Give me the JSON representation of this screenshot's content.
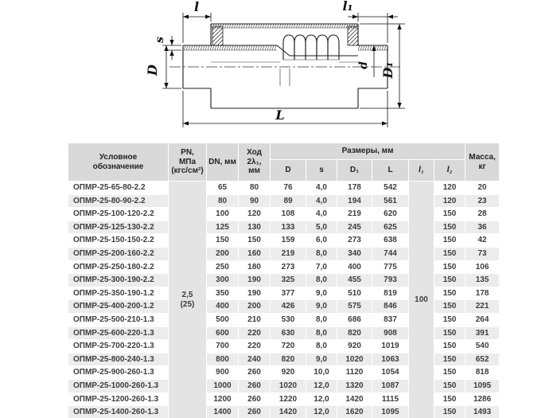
{
  "drawing": {
    "labels": {
      "l": "l",
      "l1": "l₁",
      "s": "s",
      "D": "D",
      "d": "d",
      "D1": "D₁",
      "L": "L"
    }
  },
  "table": {
    "headers": {
      "designation": "Условное\nобозначение",
      "pn": "PN,\nМПа\n(кгс/см²)",
      "dn": "DN, мм",
      "stroke": "Ход 2λ₁,\nмм",
      "dimensions_group": "Размеры, мм",
      "dim_cols": [
        "D",
        "s",
        "D₁",
        "L",
        "l₁",
        "l₂"
      ],
      "mass": "Масса,\nкг"
    },
    "pn_value": "2,5\n(25)",
    "l1_value": "100",
    "rows": [
      [
        "ОПМР-25-65-80-2.2",
        "65",
        "80",
        "76",
        "4,0",
        "178",
        "542",
        "120",
        "20"
      ],
      [
        "ОПМР-25-80-90-2.2",
        "80",
        "90",
        "89",
        "4,0",
        "194",
        "561",
        "120",
        "23"
      ],
      [
        "ОПМР-25-100-120-2.2",
        "100",
        "120",
        "108",
        "4,0",
        "219",
        "620",
        "150",
        "28"
      ],
      [
        "ОПМР-25-125-130-2.2",
        "125",
        "130",
        "133",
        "5,0",
        "245",
        "625",
        "150",
        "36"
      ],
      [
        "ОПМР-25-150-150-2.2",
        "150",
        "150",
        "159",
        "6,0",
        "273",
        "638",
        "150",
        "42"
      ],
      [
        "ОПМР-25-200-160-2.2",
        "200",
        "160",
        "219",
        "8,0",
        "340",
        "744",
        "150",
        "73"
      ],
      [
        "ОПМР-25-250-180-2.2",
        "250",
        "180",
        "273",
        "7,0",
        "400",
        "775",
        "150",
        "106"
      ],
      [
        "ОПМР-25-300-190-2.2",
        "300",
        "190",
        "325",
        "8,0",
        "455",
        "793",
        "150",
        "135"
      ],
      [
        "ОПМР-25-350-190-1.2",
        "350",
        "190",
        "377",
        "9,0",
        "510",
        "819",
        "150",
        "178"
      ],
      [
        "ОПМР-25-400-200-1.2",
        "400",
        "200",
        "426",
        "9,0",
        "575",
        "846",
        "150",
        "221"
      ],
      [
        "ОПМР-25-500-210-1.3",
        "500",
        "210",
        "530",
        "8,0",
        "686",
        "837",
        "150",
        "264"
      ],
      [
        "ОПМР-25-600-220-1.3",
        "600",
        "220",
        "630",
        "8,0",
        "820",
        "908",
        "150",
        "391"
      ],
      [
        "ОПМР-25-700-220-1.3",
        "700",
        "220",
        "720",
        "8,0",
        "920",
        "1019",
        "150",
        "540"
      ],
      [
        "ОПМР-25-800-240-1.3",
        "800",
        "240",
        "820",
        "9,0",
        "1020",
        "1063",
        "150",
        "652"
      ],
      [
        "ОПМР-25-900-260-1.3",
        "900",
        "260",
        "920",
        "10,0",
        "1120",
        "1054",
        "150",
        "818"
      ],
      [
        "ОПМР-25-1000-260-1.3",
        "1000",
        "260",
        "1020",
        "12,0",
        "1320",
        "1087",
        "150",
        "1095"
      ],
      [
        "ОПМР-25-1200-260-1.3",
        "1200",
        "260",
        "1220",
        "12,0",
        "1420",
        "1115",
        "150",
        "1286"
      ],
      [
        "ОПМР-25-1400-260-1.3",
        "1400",
        "260",
        "1420",
        "12,0",
        "1620",
        "1095",
        "150",
        "1493"
      ]
    ]
  }
}
